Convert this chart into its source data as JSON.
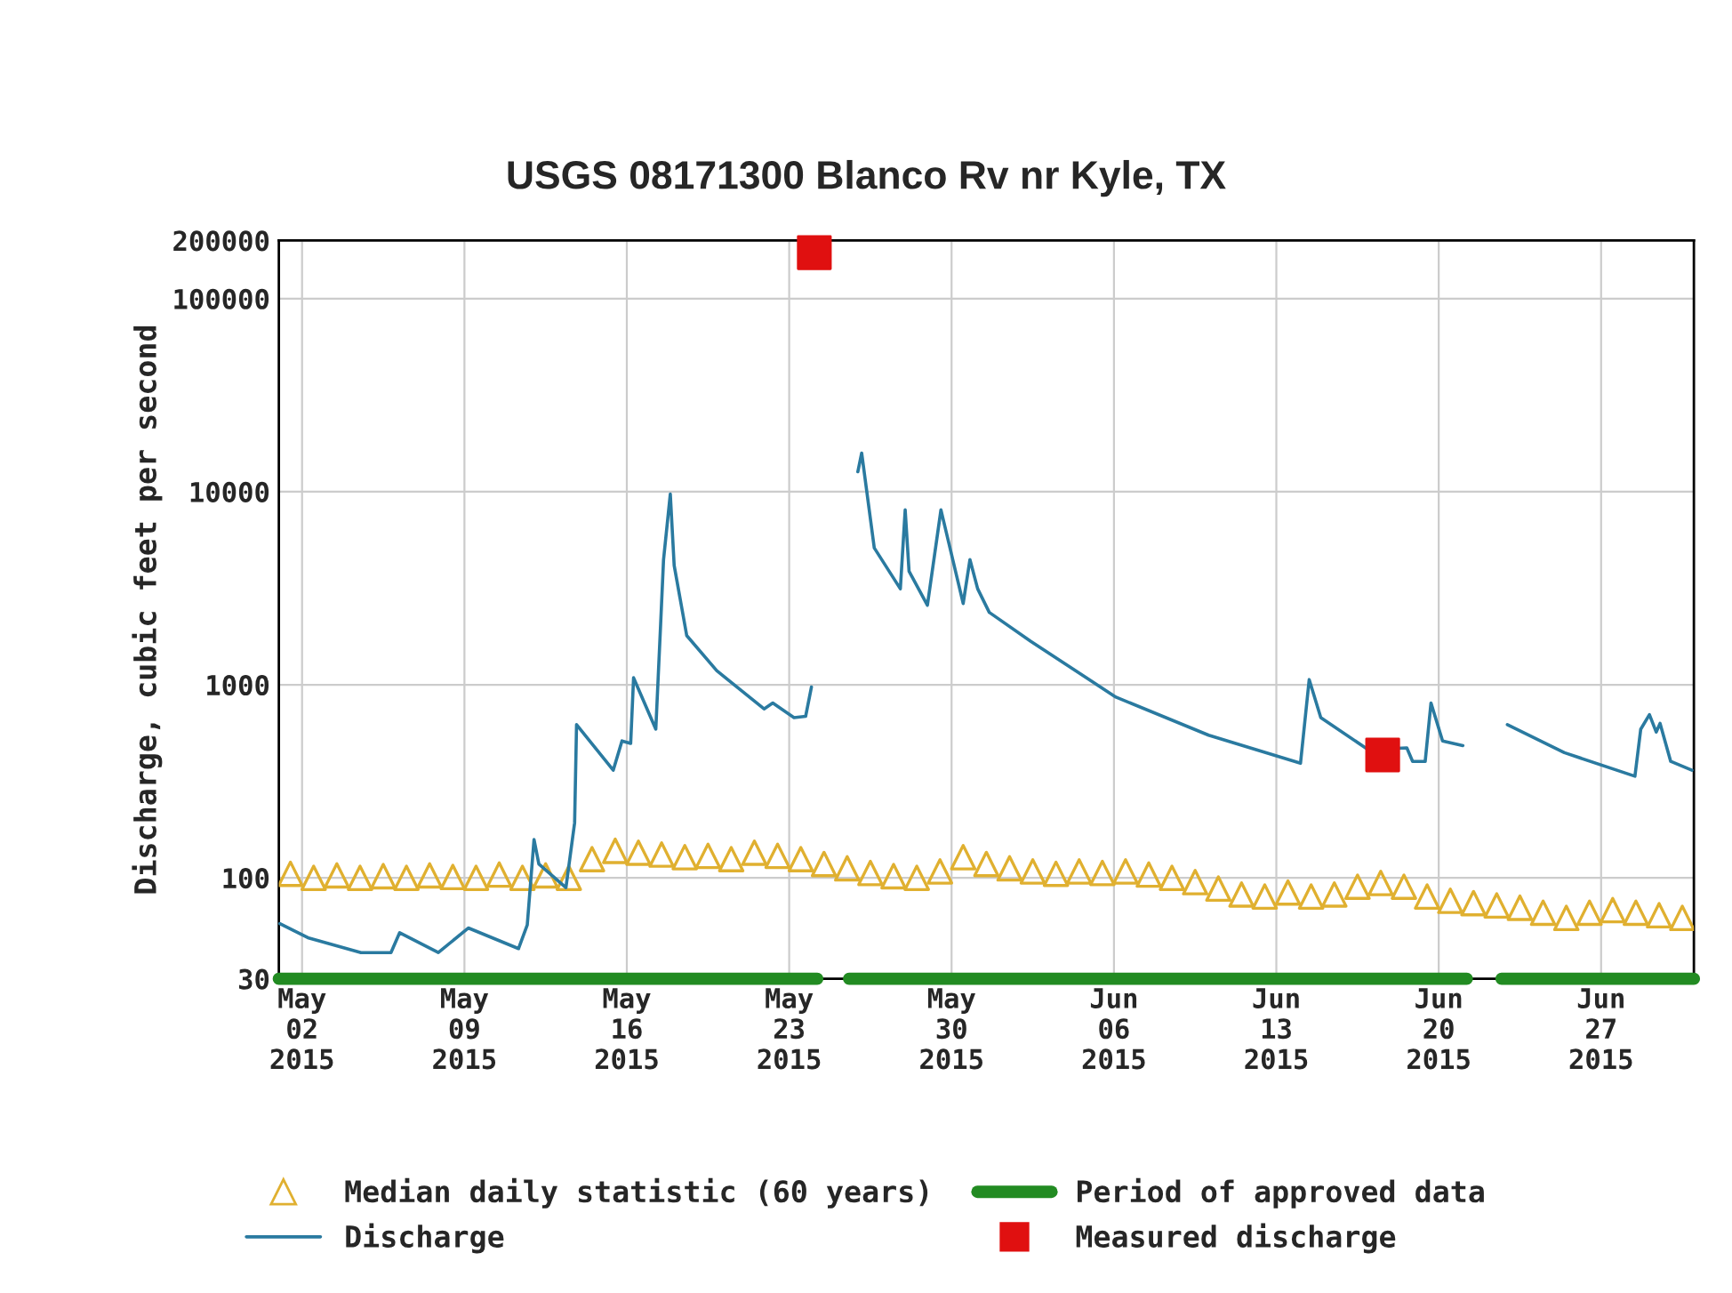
{
  "chart_data": {
    "type": "line",
    "title": "USGS 08171300 Blanco Rv nr Kyle, TX",
    "ylabel": "Discharge, cubic feet per second",
    "log": "y",
    "grid": true,
    "legend": "bottom",
    "xlim": [
      "2015-05-01",
      "2015-07-01"
    ],
    "xticks": [
      {
        "value": "2015-05-02",
        "label": "May\n02\n2015"
      },
      {
        "value": "2015-05-09",
        "label": "May\n09\n2015"
      },
      {
        "value": "2015-05-16",
        "label": "May\n16\n2015"
      },
      {
        "value": "2015-05-23",
        "label": "May\n23\n2015"
      },
      {
        "value": "2015-05-30",
        "label": "May\n30\n2015"
      },
      {
        "value": "2015-06-06",
        "label": "Jun\n06\n2015"
      },
      {
        "value": "2015-06-13",
        "label": "Jun\n13\n2015"
      },
      {
        "value": "2015-06-20",
        "label": "Jun\n20\n2015"
      },
      {
        "value": "2015-06-27",
        "label": "Jun\n27\n2015"
      }
    ],
    "ylim": [
      30,
      200000
    ],
    "yticks": [
      30,
      100,
      1000,
      10000,
      100000,
      200000
    ],
    "series": [
      {
        "name": "Median daily statistic (60 years)",
        "type": "scatter",
        "marker": "triangle",
        "color": "#e0b030",
        "x": [
          "2015-05-01T12:00",
          "2015-05-02T12:00",
          "2015-05-03T12:00",
          "2015-05-04T12:00",
          "2015-05-05T12:00",
          "2015-05-06T12:00",
          "2015-05-07T12:00",
          "2015-05-08T12:00",
          "2015-05-09T12:00",
          "2015-05-10T12:00",
          "2015-05-11T12:00",
          "2015-05-12T12:00",
          "2015-05-13T12:00",
          "2015-05-14T12:00",
          "2015-05-15T12:00",
          "2015-05-16T12:00",
          "2015-05-17T12:00",
          "2015-05-18T12:00",
          "2015-05-19T12:00",
          "2015-05-20T12:00",
          "2015-05-21T12:00",
          "2015-05-22T12:00",
          "2015-05-23T12:00",
          "2015-05-24T12:00",
          "2015-05-25T12:00",
          "2015-05-26T12:00",
          "2015-05-27T12:00",
          "2015-05-28T12:00",
          "2015-05-29T12:00",
          "2015-05-30T12:00",
          "2015-05-31T12:00",
          "2015-06-01T12:00",
          "2015-06-02T12:00",
          "2015-06-03T12:00",
          "2015-06-04T12:00",
          "2015-06-05T12:00",
          "2015-06-06T12:00",
          "2015-06-07T12:00",
          "2015-06-08T12:00",
          "2015-06-09T12:00",
          "2015-06-10T12:00",
          "2015-06-11T12:00",
          "2015-06-12T12:00",
          "2015-06-13T12:00",
          "2015-06-14T12:00",
          "2015-06-15T12:00",
          "2015-06-16T12:00",
          "2015-06-17T12:00",
          "2015-06-18T12:00",
          "2015-06-19T12:00",
          "2015-06-20T12:00",
          "2015-06-21T12:00",
          "2015-06-22T12:00",
          "2015-06-23T12:00",
          "2015-06-24T12:00",
          "2015-06-25T12:00",
          "2015-06-26T12:00",
          "2015-06-27T12:00",
          "2015-06-28T12:00",
          "2015-06-29T12:00",
          "2015-06-30T12:00"
        ],
        "values": [
          105,
          100,
          103,
          100,
          102,
          100,
          103,
          101,
          100,
          104,
          100,
          103,
          100,
          125,
          138,
          135,
          132,
          128,
          130,
          125,
          135,
          130,
          125,
          118,
          112,
          106,
          102,
          100,
          108,
          128,
          118,
          112,
          108,
          105,
          108,
          106,
          108,
          104,
          100,
          95,
          88,
          82,
          80,
          84,
          80,
          82,
          90,
          94,
          90,
          80,
          76,
          74,
          72,
          70,
          66,
          62,
          66,
          68,
          66,
          64,
          62
        ]
      },
      {
        "name": "Discharge",
        "line_style": "solid",
        "color": "#2a7aa0",
        "x": [
          "2015-05-01T01:00",
          "2015-05-02T06:00",
          "2015-05-04T13:00",
          "2015-05-05T20:00",
          "2015-05-06T05:00",
          "2015-05-07T21:00",
          "2015-05-09T04:00",
          "2015-05-11T08:00",
          "2015-05-11T17:00",
          "2015-05-12T00:00",
          "2015-05-12T05:00",
          "2015-05-13T09:00",
          "2015-05-13T18:00",
          "2015-05-13T20:00",
          "2015-05-15T10:00",
          "2015-05-15T19:00",
          "2015-05-16T04:00",
          "2015-05-16T07:00",
          "2015-05-17T06:00",
          "2015-05-17T11:00",
          "2015-05-17T14:00",
          "2015-05-17T21:00",
          "2015-05-18T01:00",
          "2015-05-18T14:00",
          "2015-05-19T21:00",
          "2015-05-21T22:00",
          "2015-05-22T07:00",
          "2015-05-23T05:00",
          "2015-05-23T17:00",
          "2015-05-23T23:00",
          "2015-05-24T12:00",
          "2015-05-25T23:00",
          "2015-05-26T03:00",
          "2015-05-26T16:00",
          "2015-05-27T19:00",
          "2015-05-28T00:00",
          "2015-05-28T04:00",
          "2015-05-28T23:00",
          "2015-05-29T13:00",
          "2015-05-30T12:00",
          "2015-05-30T19:00",
          "2015-05-31T03:00",
          "2015-05-31T15:00",
          "2015-06-02T10:00",
          "2015-06-06T02:00",
          "2015-06-10T02:00",
          "2015-06-14T01:00",
          "2015-06-14T10:00",
          "2015-06-14T22:00",
          "2015-06-16T23:00",
          "2015-06-18T15:00",
          "2015-06-18T21:00",
          "2015-06-19T10:00",
          "2015-06-19T16:00",
          "2015-06-20T04:00",
          "2015-06-21T01:00",
          "2015-06-22T00:00",
          "2015-06-22T23:00",
          "2015-06-25T10:00",
          "2015-06-28T11:00",
          "2015-06-28T17:00",
          "2015-06-29T02:00",
          "2015-06-29T09:00",
          "2015-06-29T13:00",
          "2015-06-30T00:00",
          "2015-06-30T22:00"
        ],
        "values": [
          58,
          49,
          41,
          41,
          52,
          41,
          55,
          43,
          57,
          158,
          118,
          89,
          193,
          622,
          361,
          512,
          497,
          1087,
          589,
          2065,
          4446,
          9730,
          4150,
          1798,
          1183,
          750,
          804,
          676,
          686,
          973,
          null,
          12680,
          15850,
          5117,
          3140,
          8050,
          3870,
          2582,
          8050,
          2636,
          4450,
          3140,
          2371,
          1679,
          863,
          548,
          392,
          1064,
          676,
          461,
          471,
          401,
          401,
          805,
          512,
          484,
          null,
          622,
          445,
          336,
          589,
          700,
          569,
          631,
          401,
          361
        ]
      },
      {
        "name": "Period of approved data",
        "line_style": "solid",
        "color": "#228b22",
        "x": [
          "2015-05-01T00:00",
          "2015-05-24T05:00",
          "2015-05-24T12:00",
          "2015-05-25T14:00",
          "2015-06-21T05:00",
          "2015-06-22T00:00",
          "2015-06-22T17:00",
          "2015-07-01T00:00"
        ],
        "values": [
          30,
          30,
          null,
          30,
          30,
          null,
          30,
          30
        ]
      },
      {
        "name": "Measured discharge",
        "type": "scatter",
        "marker": "square",
        "color": "#e01010",
        "x": [
          "2015-05-24T02:00",
          "2015-06-17T14:00"
        ],
        "values": [
          173000,
          433
        ]
      }
    ]
  }
}
